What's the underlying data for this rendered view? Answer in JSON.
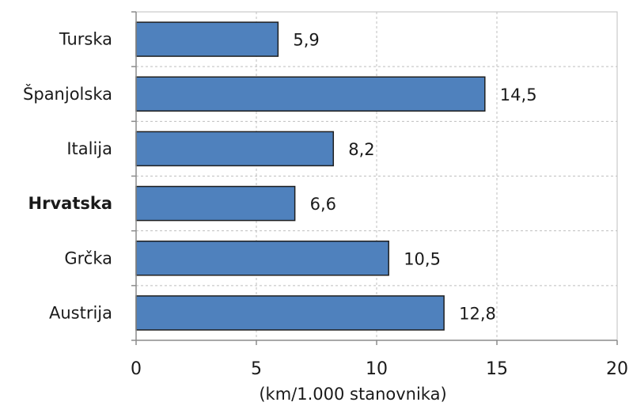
{
  "chart_data": {
    "type": "bar",
    "orientation": "horizontal",
    "categories": [
      "Turska",
      "Španjolska",
      "Italija",
      "Hrvatska",
      "Grčka",
      "Austrija"
    ],
    "values": [
      5.9,
      14.5,
      8.2,
      6.6,
      10.5,
      12.8
    ],
    "value_labels": [
      "5,9",
      "14,5",
      "8,2",
      "6,6",
      "10,5",
      "12,8"
    ],
    "highlighted_category": "Hrvatska",
    "xlabel": "(km/1.000 stanovnika)",
    "ylabel": "",
    "title": "",
    "xlim": [
      0,
      20
    ],
    "x_ticks": [
      0,
      5,
      10,
      15,
      20
    ],
    "x_tick_labels": [
      "0",
      "5",
      "10",
      "15",
      "20"
    ],
    "grid": "vertical and horizontal dashed",
    "legend": "none",
    "colors": {
      "bar_fill": "#4F81BD",
      "bar_stroke": "#1F1F1F",
      "grid": "#BFBFBF",
      "axis": "#8C8C8C",
      "plot_border": "#BFBFBF"
    }
  }
}
